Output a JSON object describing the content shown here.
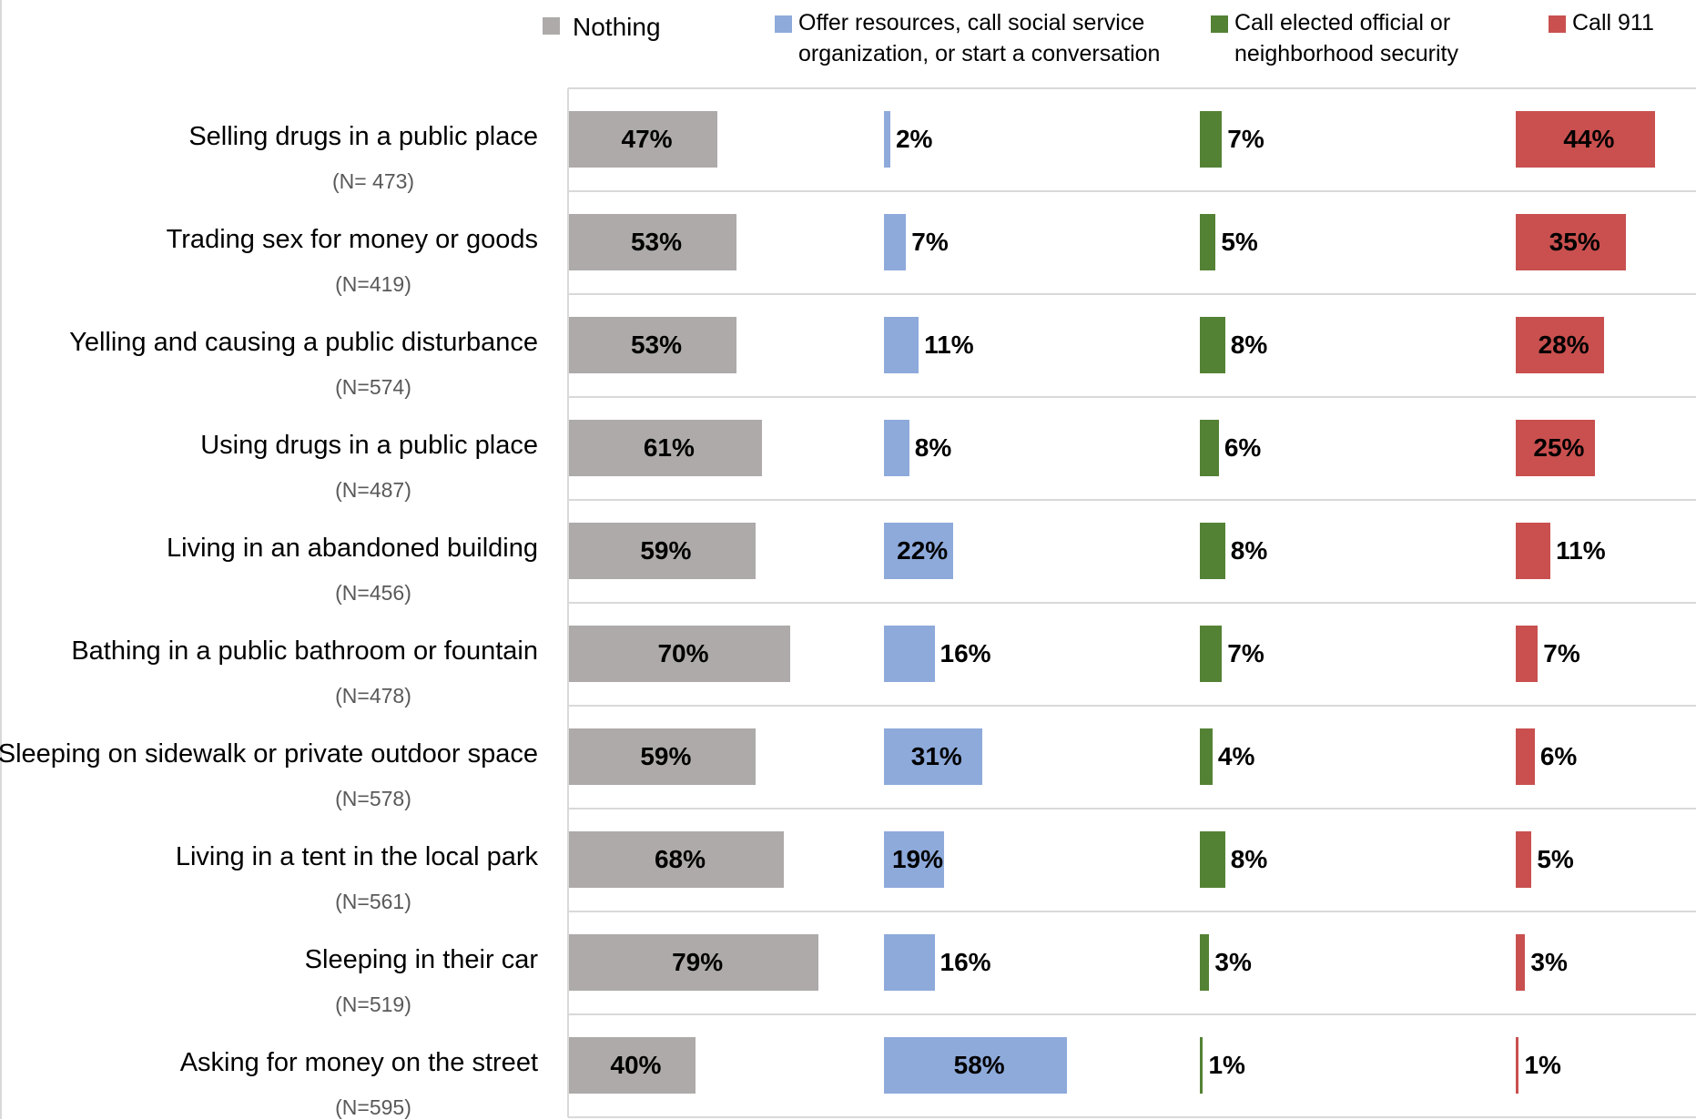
{
  "chart_data": {
    "type": "bar",
    "orientation": "horizontal",
    "layout": "small-multiples-by-series",
    "legend_position": "top",
    "grid": false,
    "categories": [
      {
        "label": "Selling drugs in a public place",
        "n": "(N= 473)"
      },
      {
        "label": "Trading sex for money or goods",
        "n": "(N=419)"
      },
      {
        "label": "Yelling and causing a public disturbance",
        "n": "(N=574)"
      },
      {
        "label": "Using drugs in a public place",
        "n": "(N=487)"
      },
      {
        "label": "Living in an abandoned building",
        "n": "(N=456)"
      },
      {
        "label": "Bathing in a public bathroom or fountain",
        "n": "(N=478)"
      },
      {
        "label": "Sleeping on sidewalk or private outdoor space",
        "n": "(N=578)"
      },
      {
        "label": "Living in a tent in the local park",
        "n": "(N=561)"
      },
      {
        "label": "Sleeping in their car",
        "n": "(N=519)"
      },
      {
        "label": "Asking for money on the street",
        "n": "(N=595)"
      }
    ],
    "series": [
      {
        "name": "Nothing",
        "color": "#aeaaaa",
        "label_inside": true,
        "values": [
          47,
          53,
          53,
          61,
          59,
          70,
          59,
          68,
          79,
          40
        ],
        "labels": [
          "47%",
          "53%",
          "53%",
          "61%",
          "59%",
          "70%",
          "59%",
          "68%",
          "79%",
          "40%"
        ]
      },
      {
        "name": "Offer resources, call social service organization, or start a conversation",
        "color": "#8eaadb",
        "label_inside": false,
        "values": [
          2,
          7,
          11,
          8,
          22,
          16,
          31,
          19,
          16,
          58
        ],
        "labels": [
          "2%",
          "7%",
          "11%",
          "8%",
          "22%",
          "16%",
          "31%",
          "19%",
          "16%",
          "58%"
        ]
      },
      {
        "name": "Call elected official or neighborhood security",
        "color": "#548235",
        "label_inside": false,
        "values": [
          7,
          5,
          8,
          6,
          8,
          7,
          4,
          8,
          3,
          1
        ],
        "labels": [
          "7%",
          "5%",
          "8%",
          "6%",
          "8%",
          "7%",
          "4%",
          "8%",
          "3%",
          "1%"
        ]
      },
      {
        "name": "Call 911",
        "color": "#c9504f",
        "label_inside": false,
        "values": [
          44,
          35,
          28,
          25,
          11,
          7,
          6,
          5,
          3,
          1
        ],
        "labels": [
          "44%",
          "35%",
          "28%",
          "25%",
          "11%",
          "7%",
          "6%",
          "5%",
          "3%",
          "1%"
        ]
      }
    ],
    "legend": [
      {
        "name_lines": [
          "Nothing"
        ],
        "color": "#aeaaaa"
      },
      {
        "name_lines": [
          "Offer resources, call social service",
          "organization, or start a conversation"
        ],
        "color": "#8eaadb"
      },
      {
        "name_lines": [
          "Call elected official or",
          "neighborhood security"
        ],
        "color": "#548235"
      },
      {
        "name_lines": [
          "Call 911"
        ],
        "color": "#c9504f"
      }
    ]
  }
}
